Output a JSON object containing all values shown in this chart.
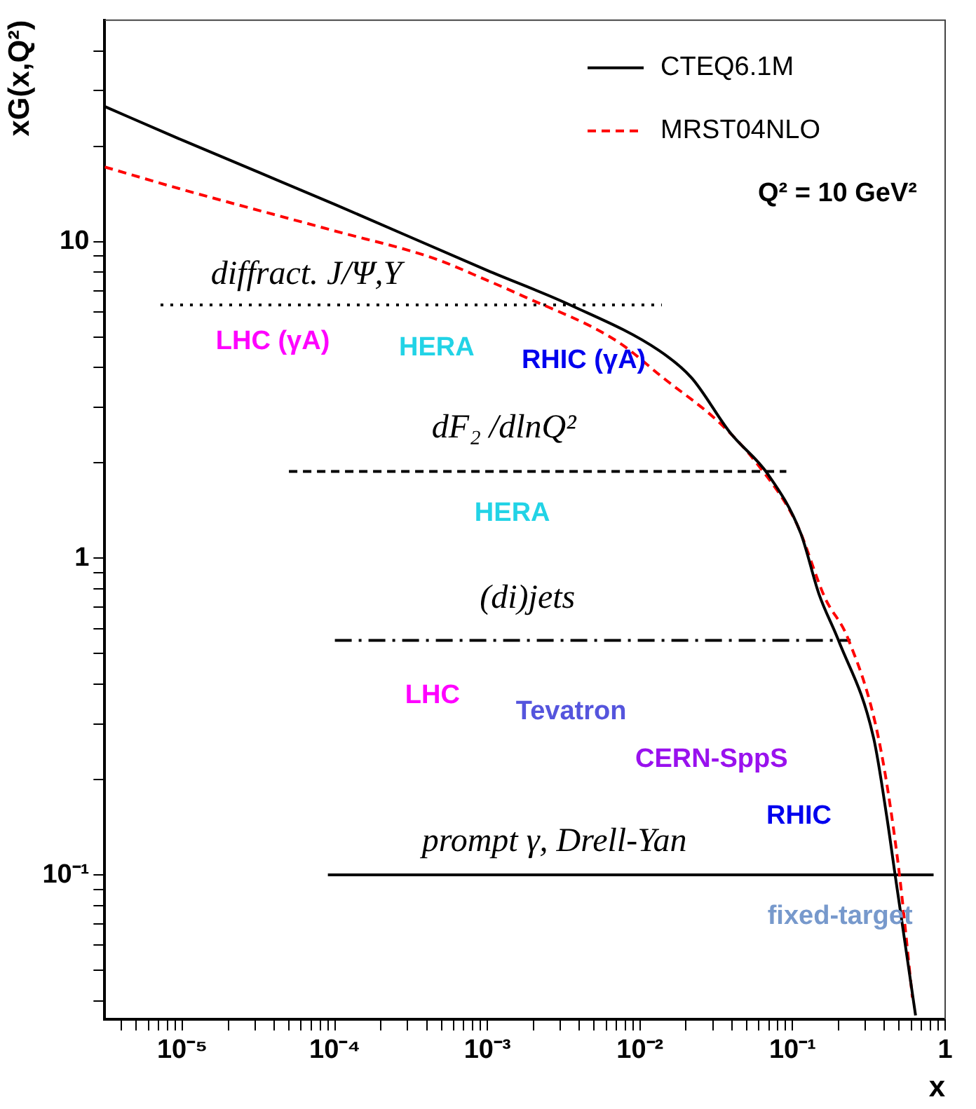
{
  "chart_data": {
    "type": "line",
    "xlabel": "x",
    "ylabel": "xG(x,Q²)",
    "log": "xy",
    "grid": false,
    "legend": "top right",
    "marker": "none",
    "xlim": [
      3.1e-06,
      1
    ],
    "ylim": [
      0.035,
      50
    ],
    "xticks": [
      {
        "value": 4e-06,
        "label": null
      },
      {
        "value": 5e-06,
        "label": null
      },
      {
        "value": 6e-06,
        "label": null
      },
      {
        "value": 7e-06,
        "label": null
      },
      {
        "value": 8e-06,
        "label": null
      },
      {
        "value": 9e-06,
        "label": null
      },
      {
        "value": 1e-05,
        "label": "10⁻⁵"
      },
      {
        "value": 2e-05,
        "label": null
      },
      {
        "value": 3e-05,
        "label": null
      },
      {
        "value": 4e-05,
        "label": null
      },
      {
        "value": 5e-05,
        "label": null
      },
      {
        "value": 6e-05,
        "label": null
      },
      {
        "value": 7e-05,
        "label": null
      },
      {
        "value": 8e-05,
        "label": null
      },
      {
        "value": 9e-05,
        "label": null
      },
      {
        "value": 0.0001,
        "label": "10⁻⁴"
      },
      {
        "value": 0.0002,
        "label": null
      },
      {
        "value": 0.0003,
        "label": null
      },
      {
        "value": 0.0004,
        "label": null
      },
      {
        "value": 0.0005,
        "label": null
      },
      {
        "value": 0.0006,
        "label": null
      },
      {
        "value": 0.0007,
        "label": null
      },
      {
        "value": 0.0008,
        "label": null
      },
      {
        "value": 0.0009,
        "label": null
      },
      {
        "value": 0.001,
        "label": "10⁻³"
      },
      {
        "value": 0.002,
        "label": null
      },
      {
        "value": 0.003,
        "label": null
      },
      {
        "value": 0.004,
        "label": null
      },
      {
        "value": 0.005,
        "label": null
      },
      {
        "value": 0.006,
        "label": null
      },
      {
        "value": 0.007,
        "label": null
      },
      {
        "value": 0.008,
        "label": null
      },
      {
        "value": 0.009,
        "label": null
      },
      {
        "value": 0.01,
        "label": "10⁻²"
      },
      {
        "value": 0.02,
        "label": null
      },
      {
        "value": 0.03,
        "label": null
      },
      {
        "value": 0.04,
        "label": null
      },
      {
        "value": 0.05,
        "label": null
      },
      {
        "value": 0.06,
        "label": null
      },
      {
        "value": 0.07,
        "label": null
      },
      {
        "value": 0.08,
        "label": null
      },
      {
        "value": 0.09,
        "label": null
      },
      {
        "value": 0.1,
        "label": "10⁻¹"
      },
      {
        "value": 0.2,
        "label": null
      },
      {
        "value": 0.3,
        "label": null
      },
      {
        "value": 0.4,
        "label": null
      },
      {
        "value": 0.5,
        "label": null
      },
      {
        "value": 0.6,
        "label": null
      },
      {
        "value": 0.7,
        "label": null
      },
      {
        "value": 0.8,
        "label": null
      },
      {
        "value": 0.9,
        "label": null
      },
      1
    ],
    "yticks": [
      {
        "value": 0.04,
        "label": null
      },
      {
        "value": 0.05,
        "label": null
      },
      {
        "value": 0.06,
        "label": null
      },
      {
        "value": 0.07,
        "label": null
      },
      {
        "value": 0.08,
        "label": null
      },
      {
        "value": 0.09,
        "label": null
      },
      {
        "value": 0.1,
        "label": "10⁻¹"
      },
      {
        "value": 0.2,
        "label": null
      },
      {
        "value": 0.3,
        "label": null
      },
      {
        "value": 0.4,
        "label": null
      },
      {
        "value": 0.5,
        "label": null
      },
      {
        "value": 0.6,
        "label": null
      },
      {
        "value": 0.7,
        "label": null
      },
      {
        "value": 0.8,
        "label": null
      },
      {
        "value": 0.9,
        "label": null
      },
      1,
      {
        "value": 2,
        "label": null
      },
      {
        "value": 3,
        "label": null
      },
      {
        "value": 4,
        "label": null
      },
      {
        "value": 5,
        "label": null
      },
      {
        "value": 6,
        "label": null
      },
      {
        "value": 7,
        "label": null
      },
      {
        "value": 8,
        "label": null
      },
      {
        "value": 9,
        "label": null
      },
      10,
      {
        "value": 20,
        "label": null
      },
      {
        "value": 30,
        "label": null
      },
      {
        "value": 40,
        "label": null
      }
    ],
    "series": [
      {
        "name": "CTEQ6.1M",
        "color": "#000000",
        "line_style": "solid",
        "x": [
          3.1e-06,
          1e-05,
          0.0001,
          0.001,
          0.0035,
          0.0133,
          0.0218,
          0.039,
          0.069,
          0.113,
          0.149,
          0.2,
          0.34,
          0.415,
          0.47,
          0.64
        ],
        "values": [
          26.7,
          20.9,
          13.1,
          8.1,
          6.3,
          4.53,
          3.71,
          2.49,
          1.84,
          1.2,
          0.77,
          0.55,
          0.27,
          0.152,
          0.1,
          0.036
        ]
      },
      {
        "name": "MRST04NLO",
        "color": "#ff0000",
        "line_style": "dashed",
        "x": [
          3.1e-06,
          1e-05,
          0.0001,
          0.00044,
          0.00096,
          0.00166,
          0.007,
          0.0142,
          0.0334,
          0.0594,
          0.106,
          0.163,
          0.23,
          0.366,
          0.49,
          0.61
        ],
        "values": [
          17.2,
          14.6,
          10.8,
          8.87,
          7.6,
          6.77,
          4.86,
          3.71,
          2.67,
          1.97,
          1.29,
          0.75,
          0.56,
          0.27,
          0.11,
          0.041
        ]
      },
      {
        "color": "#000000",
        "line_style": "dotted",
        "x": [
          7.2e-06,
          0.0139
        ],
        "values": [
          6.31,
          6.31
        ]
      },
      {
        "color": "#000000",
        "line_style": "dashed",
        "x": [
          5e-05,
          0.091
        ],
        "values": [
          1.88,
          1.88
        ]
      },
      {
        "color": "#000000",
        "line_style": "dashdot",
        "x": [
          0.0001,
          0.24
        ],
        "values": [
          0.55,
          0.55
        ]
      },
      {
        "color": "#000000",
        "line_style": "solid",
        "x": [
          9e-05,
          0.84
        ],
        "values": [
          0.1,
          0.1
        ]
      }
    ],
    "annotations": [
      "Q² = 10 GeV²",
      "diffract. J/Ψ,Υ",
      "LHC (γA)",
      "HERA",
      "RHIC (γA)",
      "dF₂ /dlnQ²",
      "HERA",
      "(di)jets",
      "LHC",
      "Tevatron",
      "CERN-SppS",
      "RHIC",
      "prompt γ, Drell-Yan",
      "fixed-target"
    ]
  }
}
